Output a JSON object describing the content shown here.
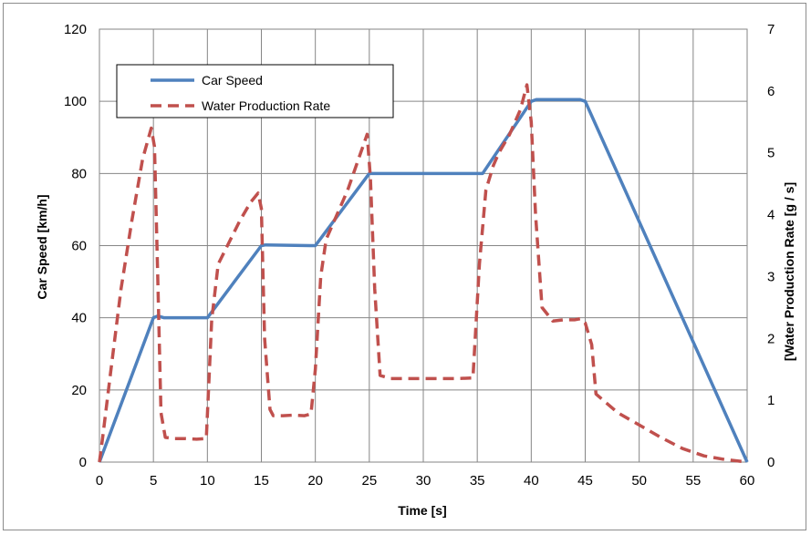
{
  "chart_data": {
    "type": "line",
    "xlabel": "Time [s]",
    "ylabel": "Car Speed [km/h]",
    "y2label": "[Water Production Rate [g / s]",
    "xlim": [
      0,
      60
    ],
    "ylim": [
      0,
      120
    ],
    "y2lim": [
      0,
      7
    ],
    "x_ticks": [
      0,
      5,
      10,
      15,
      20,
      25,
      30,
      35,
      40,
      45,
      50,
      55,
      60
    ],
    "y_ticks": [
      0,
      20,
      40,
      60,
      80,
      100,
      120
    ],
    "y2_ticks": [
      0,
      1,
      2,
      3,
      4,
      5,
      6,
      7
    ],
    "grid": true,
    "legend_position": "top-left",
    "series": [
      {
        "name": "Car Speed",
        "axis": "left",
        "color": "#4f81bd",
        "style": "solid",
        "x": [
          0,
          5,
          5.4,
          6,
          9.5,
          10,
          15,
          15.4,
          19.5,
          20,
          25,
          25.5,
          35,
          35.5,
          40,
          40.5,
          44.5,
          45,
          60
        ],
        "y": [
          0,
          40,
          40.5,
          40,
          40,
          40,
          60,
          60.2,
          60,
          60,
          80,
          80,
          80,
          80,
          100,
          100.5,
          100.5,
          100,
          0
        ]
      },
      {
        "name": "Water Production Rate",
        "axis": "right",
        "color": "#c0504d",
        "style": "dashed",
        "x": [
          0,
          0.3,
          1,
          2,
          3,
          4,
          4.8,
          5.1,
          5.4,
          5.7,
          6.1,
          7,
          8,
          9,
          9.9,
          10.4,
          11,
          12,
          13,
          14,
          14.7,
          15,
          15.3,
          15.8,
          16.1,
          17,
          18,
          19,
          19.6,
          20,
          20.5,
          21,
          22,
          23,
          24,
          24.8,
          25.1,
          25.5,
          26,
          27,
          30,
          33,
          34.6,
          35.2,
          35.8,
          36.5,
          37,
          38,
          39,
          39.6,
          40,
          40.4,
          41,
          42,
          43,
          44,
          44.6,
          45,
          45.6,
          46,
          47,
          48,
          50,
          52,
          54,
          56,
          58,
          59.5,
          60
        ],
        "y": [
          0,
          0.4,
          1.4,
          2.8,
          3.9,
          4.9,
          5.4,
          5.1,
          3.0,
          0.8,
          0.4,
          0.38,
          0.38,
          0.37,
          0.38,
          2.3,
          3.2,
          3.55,
          3.9,
          4.2,
          4.35,
          4.1,
          2.0,
          0.85,
          0.75,
          0.75,
          0.76,
          0.75,
          0.78,
          1.5,
          3.0,
          3.6,
          4.0,
          4.4,
          4.9,
          5.3,
          4.6,
          2.8,
          1.4,
          1.35,
          1.35,
          1.35,
          1.36,
          3.2,
          4.4,
          4.8,
          5.0,
          5.3,
          5.7,
          6.1,
          5.5,
          4.0,
          2.5,
          2.28,
          2.3,
          2.3,
          2.32,
          2.25,
          1.9,
          1.1,
          0.95,
          0.8,
          0.6,
          0.4,
          0.22,
          0.1,
          0.04,
          0.01,
          0
        ]
      }
    ]
  }
}
